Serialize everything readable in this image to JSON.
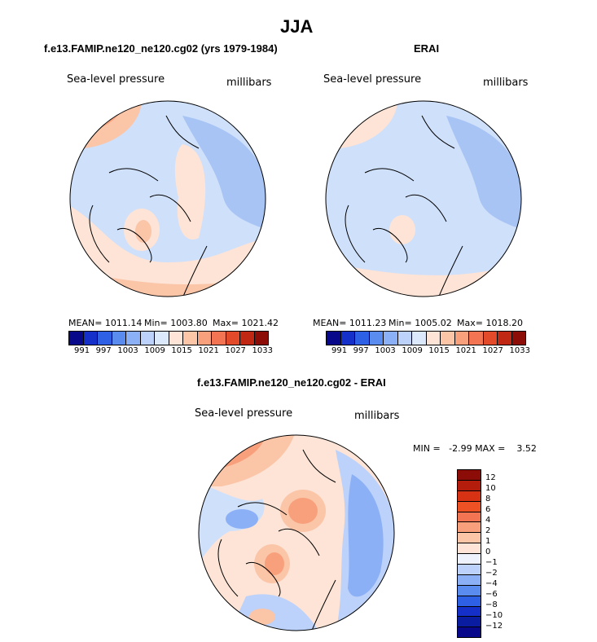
{
  "season": "JJA",
  "panels": [
    {
      "title": "f.e13.FAMIP.ne120_ne120.cg02 (yrs 1979-1984)",
      "variable": "Sea-level pressure",
      "units": "millibars",
      "mean_label": "MEAN= 1011.14",
      "min_label": "Min= 1003.80",
      "max_label": "Max= 1021.42"
    },
    {
      "title": "ERAI",
      "variable": "Sea-level pressure",
      "units": "millibars",
      "mean_label": "MEAN= 1011.23",
      "min_label": "Min= 1005.02",
      "max_label": "Max= 1018.20"
    }
  ],
  "diff_panel": {
    "title": "f.e13.FAMIP.ne120_ne120.cg02 - ERAI",
    "variable": "Sea-level pressure",
    "units": "millibars",
    "stats_label": "MIN =   -2.99 MAX =    3.52"
  },
  "colorbar_labels": [
    "991",
    "997",
    "1003",
    "1009",
    "1015",
    "1021",
    "1027",
    "1033"
  ],
  "diff_colorbar_labels": [
    "12",
    "10",
    "8",
    "6",
    "4",
    "2",
    "1",
    "0",
    "−1",
    "−2",
    "−4",
    "−6",
    "−8",
    "−10",
    "−12"
  ],
  "colors": {
    "colorbar": [
      "#08088a",
      "#1530c8",
      "#2e60e6",
      "#5a8cf0",
      "#8cb0f6",
      "#bcd2fa",
      "#dce8fc",
      "#fde4d6",
      "#fbc5a8",
      "#f8a07c",
      "#f27452",
      "#e24a2a",
      "#c02814",
      "#8c0c08"
    ],
    "ocean_blue": "#cfe0fb",
    "deep_blue": "#a8c4f5",
    "mid_blue": "#7ea6ef",
    "pale_orange": "#fde4d6",
    "orange": "#f7a985",
    "red": "#ee7d5a"
  }
}
